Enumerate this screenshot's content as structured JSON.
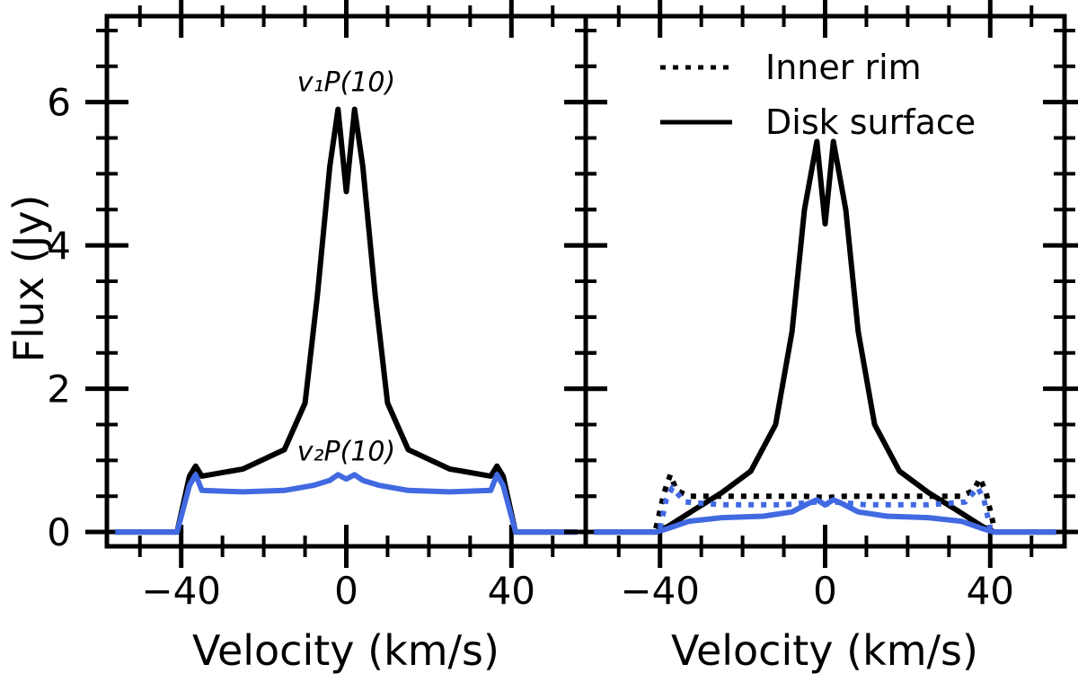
{
  "chart_data": [
    {
      "type": "line",
      "panel": "left",
      "xlabel": "Velocity (km/s)",
      "ylabel": "Flux (Jy)",
      "xlim": [
        -58,
        58
      ],
      "ylim": [
        -0.2,
        7.2
      ],
      "xticks": [
        -40,
        0,
        40
      ],
      "xtick_labels": [
        "−40",
        "0",
        "40"
      ],
      "yticks": [
        0,
        2,
        4,
        6
      ],
      "ytick_labels": [
        "0",
        "2",
        "4",
        "6"
      ],
      "annotations": [
        {
          "text": "v₁P(10)",
          "x": 0,
          "y": 6.15,
          "color": "#000000"
        },
        {
          "text": "v₂P(10)",
          "x": 0,
          "y": 1.0,
          "color": "#4169E1"
        }
      ],
      "series": [
        {
          "name": "v1P(10)",
          "color": "#000000",
          "style": "solid",
          "x": [
            -56,
            -41,
            -38,
            -36.5,
            -35,
            -25,
            -15,
            -10,
            -7,
            -4,
            -2,
            0,
            2,
            4,
            7,
            10,
            15,
            25,
            35,
            36.5,
            38,
            41,
            56
          ],
          "y": [
            0.0,
            0.0,
            0.78,
            0.92,
            0.78,
            0.88,
            1.15,
            1.8,
            3.3,
            5.1,
            5.9,
            4.75,
            5.9,
            5.1,
            3.3,
            1.8,
            1.15,
            0.88,
            0.78,
            0.92,
            0.78,
            0.0,
            0.0
          ]
        },
        {
          "name": "v2P(10)",
          "color": "#4169E1",
          "style": "solid",
          "x": [
            -56,
            -41,
            -38,
            -36.5,
            -35,
            -25,
            -15,
            -8,
            -4,
            -2,
            0,
            2,
            4,
            8,
            15,
            25,
            35,
            36.5,
            38,
            41,
            56
          ],
          "y": [
            0.0,
            0.0,
            0.65,
            0.8,
            0.58,
            0.56,
            0.58,
            0.65,
            0.72,
            0.8,
            0.74,
            0.8,
            0.72,
            0.65,
            0.58,
            0.56,
            0.58,
            0.8,
            0.65,
            0.0,
            0.0
          ]
        }
      ]
    },
    {
      "type": "line",
      "panel": "right",
      "xlabel": "Velocity (km/s)",
      "ylabel": "",
      "xlim": [
        -58,
        58
      ],
      "ylim": [
        -0.2,
        7.2
      ],
      "xticks": [
        -40,
        0,
        40
      ],
      "xtick_labels": [
        "−40",
        "0",
        "40"
      ],
      "yticks": [
        0,
        2,
        4,
        6
      ],
      "legend": {
        "placement": "top-right",
        "entries": [
          {
            "label": "Inner rim",
            "style": "dotted",
            "color": "#000000"
          },
          {
            "label": "Disk surface",
            "style": "solid",
            "color": "#000000"
          }
        ]
      },
      "series": [
        {
          "name": "Disk surface v1",
          "color": "#000000",
          "style": "solid",
          "x": [
            -56,
            -41,
            -38,
            -32,
            -25,
            -18,
            -12,
            -8,
            -5,
            -2,
            0,
            2,
            5,
            8,
            12,
            18,
            25,
            32,
            38,
            41,
            56
          ],
          "y": [
            0.0,
            0.0,
            0.08,
            0.3,
            0.55,
            0.85,
            1.5,
            2.8,
            4.5,
            5.45,
            4.3,
            5.45,
            4.5,
            2.8,
            1.5,
            0.85,
            0.55,
            0.3,
            0.08,
            0.0,
            0.0
          ]
        },
        {
          "name": "Inner rim v1",
          "color": "#000000",
          "style": "dotted",
          "x": [
            -41,
            -39,
            -37.5,
            -36,
            -33,
            -20,
            -5,
            0,
            5,
            20,
            33,
            36,
            37.5,
            39,
            41
          ],
          "y": [
            0.05,
            0.55,
            0.8,
            0.58,
            0.5,
            0.5,
            0.5,
            0.48,
            0.5,
            0.5,
            0.5,
            0.58,
            0.75,
            0.55,
            0.05
          ]
        },
        {
          "name": "Inner rim v2",
          "color": "#4169E1",
          "style": "dotted",
          "x": [
            -40,
            -38.5,
            -37,
            -34,
            -25,
            -10,
            -2,
            0,
            2,
            10,
            25,
            34,
            37,
            38.5,
            40
          ],
          "y": [
            0.05,
            0.45,
            0.62,
            0.42,
            0.38,
            0.38,
            0.42,
            0.38,
            0.42,
            0.38,
            0.38,
            0.42,
            0.62,
            0.45,
            0.05
          ]
        },
        {
          "name": "Disk surface v2",
          "color": "#4169E1",
          "style": "solid",
          "x": [
            -56,
            -41,
            -38,
            -33,
            -25,
            -15,
            -8,
            -4,
            -2,
            0,
            2,
            4,
            8,
            15,
            25,
            33,
            38,
            41,
            56
          ],
          "y": [
            0.0,
            0.0,
            0.05,
            0.15,
            0.2,
            0.22,
            0.28,
            0.4,
            0.45,
            0.38,
            0.45,
            0.4,
            0.28,
            0.22,
            0.2,
            0.15,
            0.05,
            0.0,
            0.0
          ]
        }
      ]
    }
  ]
}
